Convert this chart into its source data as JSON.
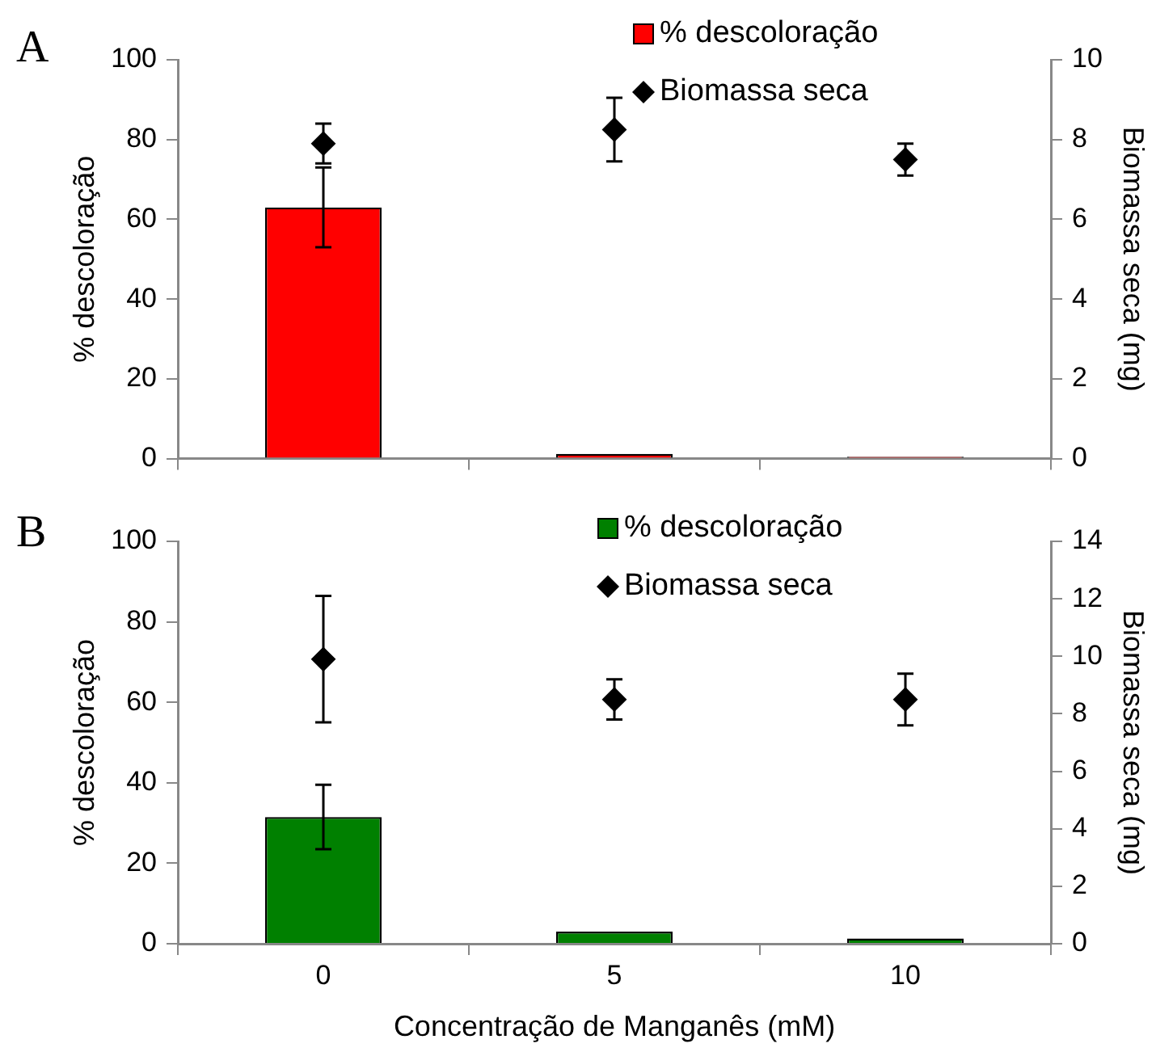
{
  "chart_data": [
    {
      "type": "bar",
      "title": "A",
      "categories": [
        "0",
        "5",
        "10"
      ],
      "ylabel": "% descoloração",
      "y2label": "Biomassa seca (mg)",
      "ylim": [
        0,
        100
      ],
      "yticks": [
        0,
        20,
        40,
        60,
        80,
        100
      ],
      "y2lim": [
        0,
        10
      ],
      "y2ticks": [
        0,
        2,
        4,
        6,
        8,
        10
      ],
      "grid": false,
      "legend": "top right",
      "tick_labels": "y",
      "series": [
        {
          "name": "% descoloração",
          "color": "#ff0000",
          "values": [
            63,
            1.2,
            0.5
          ],
          "errors": [
            10,
            null,
            null
          ]
        },
        {
          "name": "Biomassa seca",
          "type": "scatter",
          "axis": "y2",
          "color": "#000000",
          "marker": "diamond",
          "values": [
            7.9,
            8.25,
            7.5
          ],
          "errors": [
            0.5,
            0.8,
            0.4
          ]
        }
      ]
    },
    {
      "type": "bar",
      "title": "B",
      "categories": [
        "0",
        "5",
        "10"
      ],
      "xlabel": "Concentração de Manganês (mM)",
      "ylabel": "% descoloração",
      "y2label": "Biomassa seca (mg)",
      "ylim": [
        0,
        100
      ],
      "yticks": [
        0,
        20,
        40,
        60,
        80,
        100
      ],
      "y2lim": [
        0,
        14
      ],
      "y2ticks": [
        0,
        2,
        4,
        6,
        8,
        10,
        12,
        14
      ],
      "grid": false,
      "legend": "top right",
      "series": [
        {
          "name": "% descoloração",
          "color": "#008000",
          "values": [
            31.5,
            3,
            1.3
          ],
          "errors": [
            8,
            null,
            null
          ]
        },
        {
          "name": "Biomassa seca",
          "type": "scatter",
          "axis": "y2",
          "color": "#000000",
          "marker": "diamond",
          "values": [
            9.9,
            8.5,
            8.5
          ],
          "errors": [
            2.2,
            0.7,
            0.9
          ]
        }
      ]
    }
  ]
}
